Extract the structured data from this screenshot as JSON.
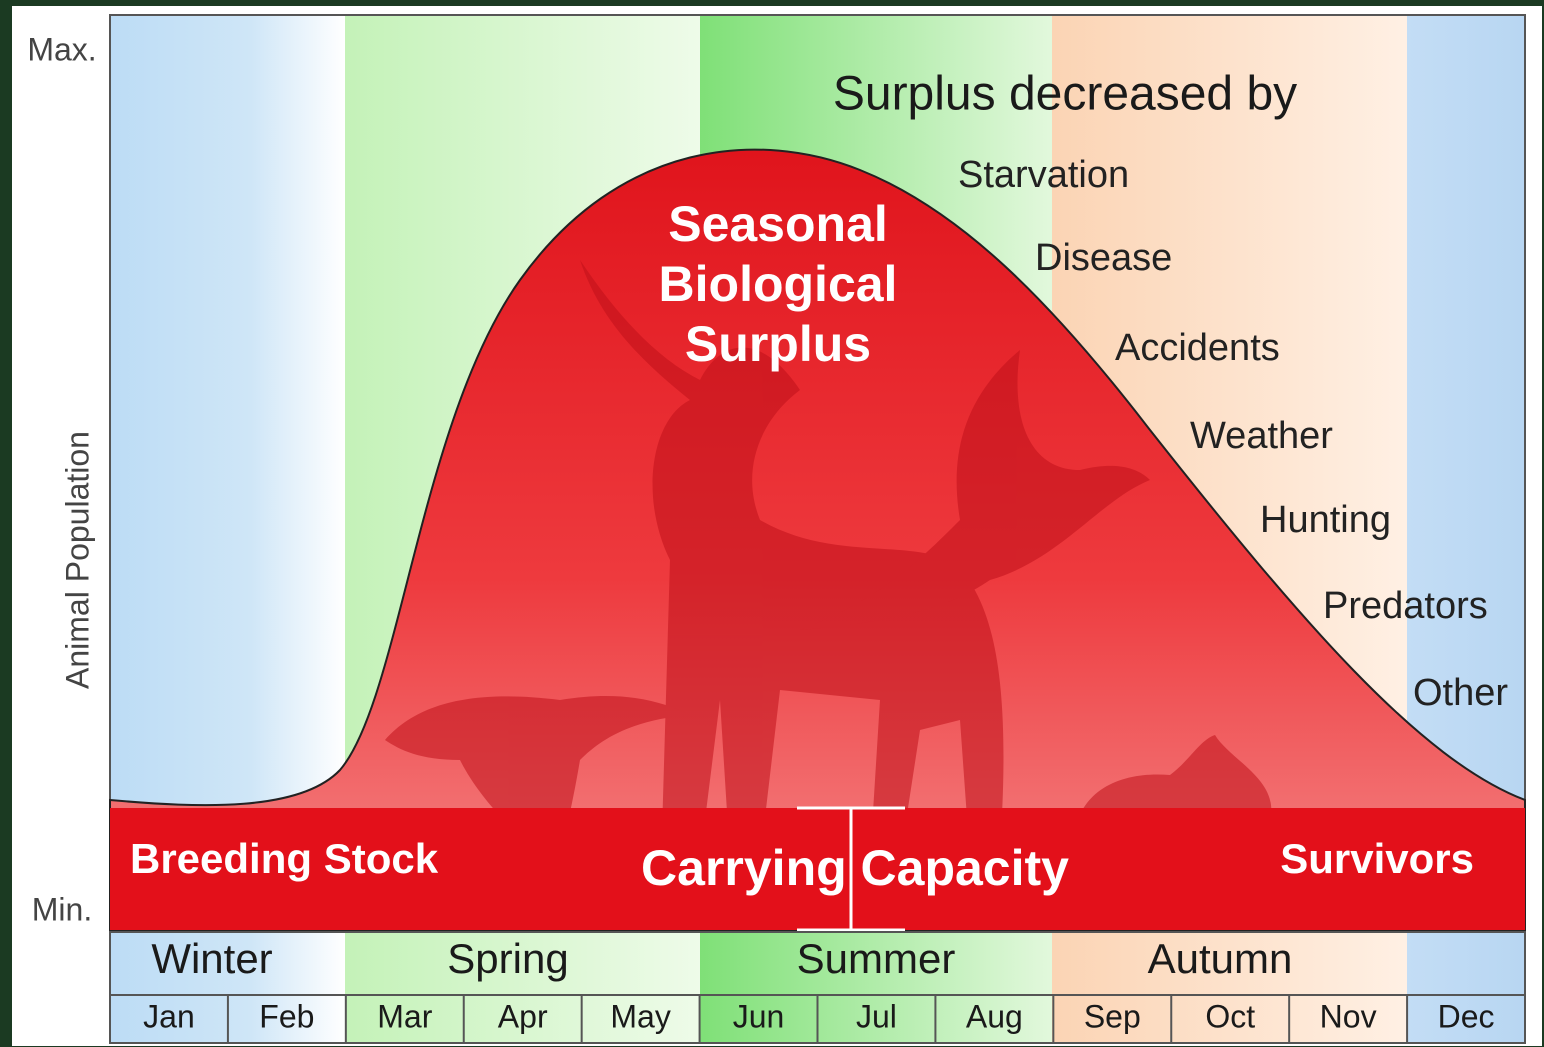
{
  "axis": {
    "label": "Animal Population",
    "max": "Max.",
    "min": "Min."
  },
  "surplus": {
    "lines": [
      "Seasonal",
      "Biological",
      "Surplus"
    ]
  },
  "decreased_by": {
    "title": "Surplus decreased by",
    "causes": [
      "Starvation",
      "Disease",
      "Accidents",
      "Weather",
      "Hunting",
      "Predators",
      "Other"
    ]
  },
  "band": {
    "breeding_stock": "Breeding Stock",
    "carrying_capacity": "Carrying Capacity",
    "survivors": "Survivors"
  },
  "seasons": [
    "Winter",
    "Spring",
    "Summer",
    "Autumn"
  ],
  "months": [
    "Jan",
    "Feb",
    "Mar",
    "Apr",
    "May",
    "Jun",
    "Jul",
    "Aug",
    "Sep",
    "Oct",
    "Nov",
    "Dec"
  ]
}
